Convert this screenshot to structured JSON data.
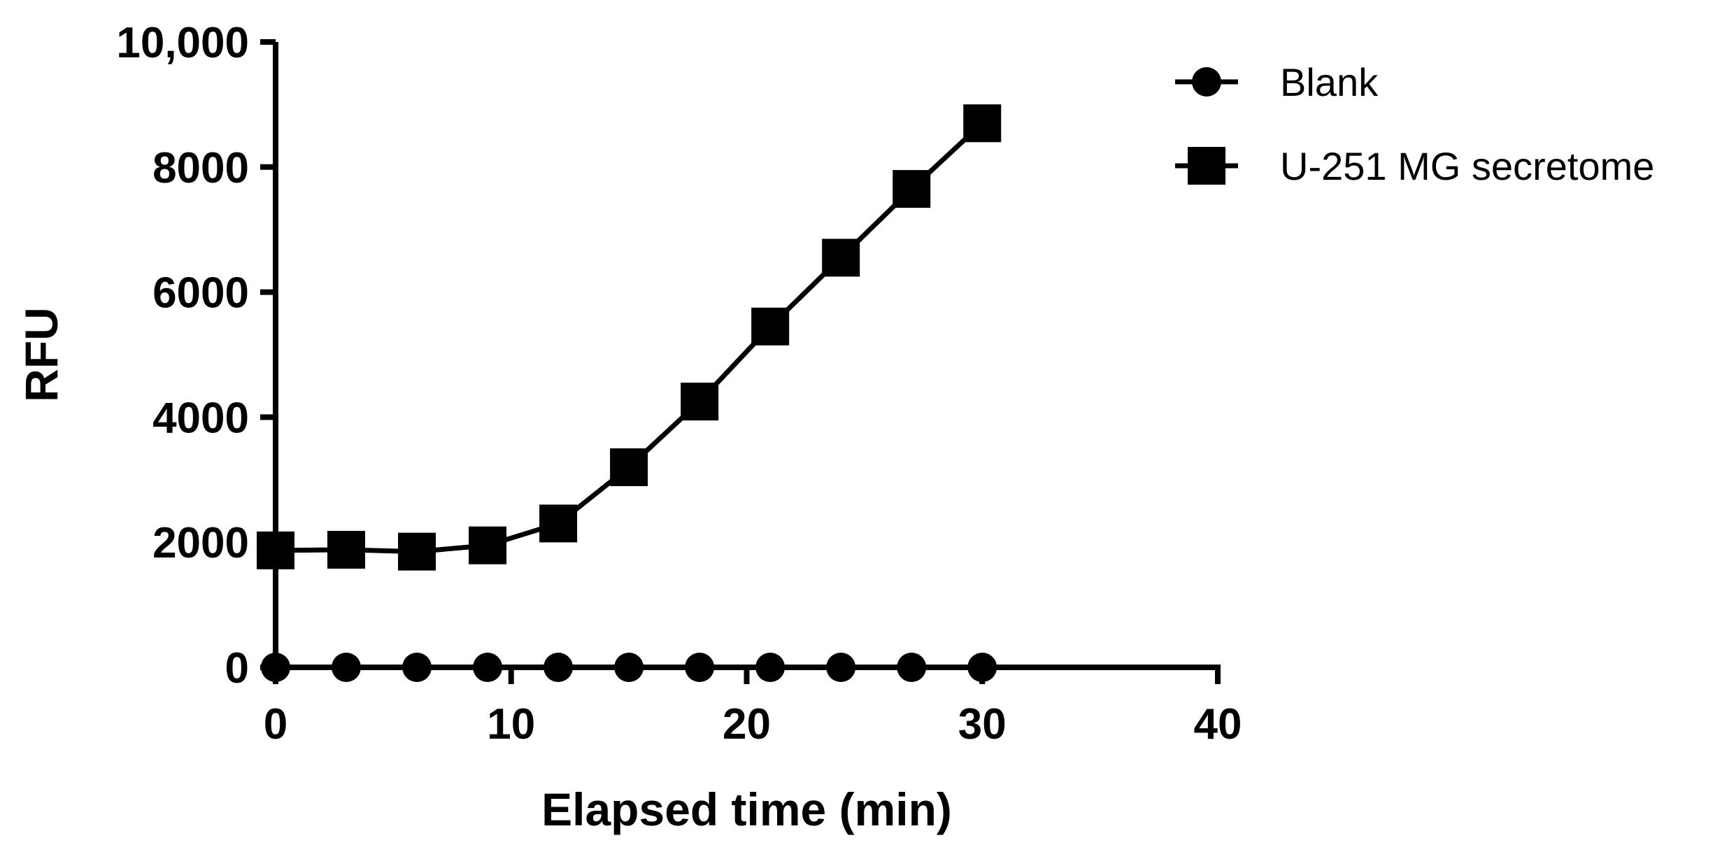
{
  "chart_data": {
    "type": "line",
    "xlabel": "Elapsed time (min)",
    "ylabel": "RFU",
    "xlim": [
      0,
      40
    ],
    "ylim": [
      0,
      10000
    ],
    "x_ticks": [
      0,
      10,
      20,
      30,
      40
    ],
    "x_tick_labels": [
      "0",
      "10",
      "20",
      "30",
      "40"
    ],
    "y_ticks": [
      0,
      2000,
      4000,
      6000,
      8000,
      10000
    ],
    "y_tick_labels": [
      "0",
      "2000",
      "4000",
      "6000",
      "8000",
      "10,000"
    ],
    "grid": false,
    "legend_position": "top-right",
    "x": [
      0,
      3,
      6,
      9,
      12,
      15,
      18,
      21,
      24,
      27,
      30
    ],
    "series": [
      {
        "name": "Blank",
        "marker": "circle",
        "color": "#000000",
        "values": [
          0,
          0,
          0,
          0,
          0,
          0,
          0,
          0,
          0,
          0,
          0
        ]
      },
      {
        "name": "U-251 MG secretome",
        "marker": "square",
        "color": "#000000",
        "values": [
          1870,
          1880,
          1850,
          1950,
          2300,
          3200,
          4250,
          5450,
          6550,
          7650,
          8700
        ]
      }
    ]
  }
}
